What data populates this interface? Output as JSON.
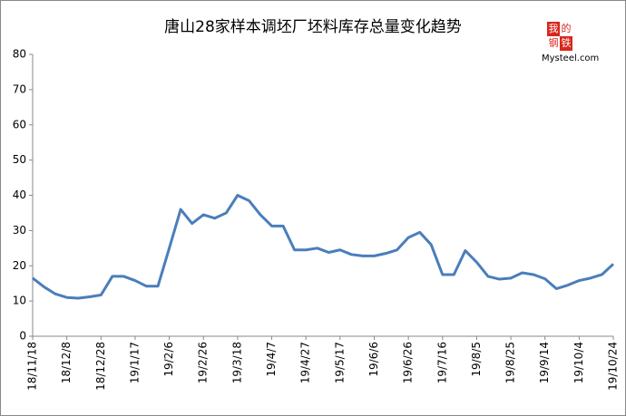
{
  "chart_data": {
    "type": "line",
    "title": "唐山28家样本调坯厂坯料库存总量变化趋势",
    "categories": [
      "18/11/18",
      null,
      null,
      "18/12/8",
      null,
      null,
      "18/12/28",
      null,
      null,
      "19/1/17",
      null,
      null,
      "19/2/6",
      null,
      null,
      "19/2/26",
      null,
      null,
      "19/3/18",
      null,
      null,
      "19/4/7",
      null,
      null,
      "19/4/27",
      null,
      null,
      "19/5/17",
      null,
      null,
      "19/6/6",
      null,
      null,
      "19/6/26",
      null,
      null,
      "19/7/16",
      null,
      null,
      "19/8/5",
      null,
      null,
      "19/8/25",
      null,
      null,
      "19/9/14",
      null,
      null,
      "19/10/4",
      null,
      null,
      "19/10/24"
    ],
    "values": [
      16.5,
      14,
      12,
      11,
      10.8,
      11.2,
      11.7,
      17,
      17,
      15.8,
      14.2,
      14.2,
      25,
      36,
      32,
      34.5,
      33.5,
      35,
      40,
      38.5,
      34.5,
      31.3,
      31.3,
      24.5,
      24.5,
      25,
      23.8,
      24.5,
      23.2,
      22.8,
      22.8,
      23.5,
      24.5,
      28,
      29.5,
      26,
      17.5,
      17.5,
      24.3,
      21,
      17,
      16.2,
      16.5,
      18,
      17.5,
      16.3,
      13.5,
      14.5,
      15.8,
      16.5,
      17.5,
      20.5
    ],
    "color": "#4a7ebb",
    "ylim": [
      0,
      80
    ],
    "yticks": [
      0,
      10,
      20,
      30,
      40,
      50,
      60,
      70,
      80
    ],
    "grid": false,
    "logo_chars": [
      "我",
      "的",
      "钢",
      "铁"
    ],
    "logo_text": "Mysteel.com"
  }
}
